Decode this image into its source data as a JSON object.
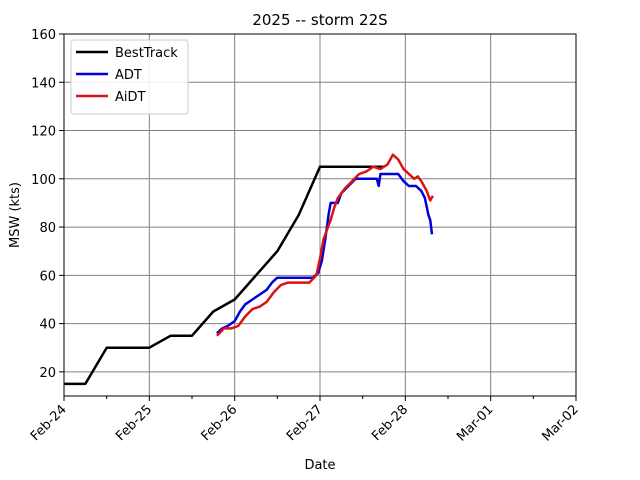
{
  "chart_data": {
    "type": "line",
    "title": "2025 -- storm 22S",
    "xlabel": "Date",
    "ylabel": "MSW (kts)",
    "xlim": [
      "2025-02-24T00:00",
      "2025-03-02T00:00"
    ],
    "ylim": [
      10,
      160
    ],
    "x_tick_labels": [
      "Feb-24",
      "Feb-25",
      "Feb-26",
      "Feb-27",
      "Feb-28",
      "Mar-01",
      "Mar-02"
    ],
    "y_ticks": [
      20,
      40,
      60,
      80,
      100,
      120,
      140,
      160
    ],
    "grid": true,
    "legend_position": "top-left",
    "series": [
      {
        "name": "BestTrack",
        "color": "#000000",
        "points": [
          [
            "2025-02-24T00:00",
            15
          ],
          [
            "2025-02-24T06:00",
            15
          ],
          [
            "2025-02-24T12:00",
            30
          ],
          [
            "2025-02-24T18:00",
            30
          ],
          [
            "2025-02-25T00:00",
            30
          ],
          [
            "2025-02-25T06:00",
            35
          ],
          [
            "2025-02-25T12:00",
            35
          ],
          [
            "2025-02-25T18:00",
            45
          ],
          [
            "2025-02-26T00:00",
            50
          ],
          [
            "2025-02-26T06:00",
            60
          ],
          [
            "2025-02-26T12:00",
            70
          ],
          [
            "2025-02-26T18:00",
            85
          ],
          [
            "2025-02-27T00:00",
            105
          ],
          [
            "2025-02-27T06:00",
            105
          ],
          [
            "2025-02-27T12:00",
            105
          ],
          [
            "2025-02-27T18:00",
            105
          ]
        ]
      },
      {
        "name": "ADT",
        "color": "#0000dd",
        "points": [
          [
            "2025-02-25T19:00",
            36
          ],
          [
            "2025-02-25T20:30",
            38
          ],
          [
            "2025-02-25T22:00",
            39
          ],
          [
            "2025-02-26T00:00",
            41
          ],
          [
            "2025-02-26T01:30",
            45
          ],
          [
            "2025-02-26T03:00",
            48
          ],
          [
            "2025-02-26T05:00",
            50
          ],
          [
            "2025-02-26T07:00",
            52
          ],
          [
            "2025-02-26T09:00",
            54
          ],
          [
            "2025-02-26T10:30",
            57
          ],
          [
            "2025-02-26T12:00",
            59
          ],
          [
            "2025-02-26T18:00",
            59
          ],
          [
            "2025-02-26T22:00",
            59
          ],
          [
            "2025-02-26T23:30",
            61
          ],
          [
            "2025-02-27T00:30",
            66
          ],
          [
            "2025-02-27T01:30",
            75
          ],
          [
            "2025-02-27T02:30",
            86
          ],
          [
            "2025-02-27T03:00",
            90
          ],
          [
            "2025-02-27T05:00",
            90
          ],
          [
            "2025-02-27T06:00",
            94
          ],
          [
            "2025-02-27T08:00",
            97
          ],
          [
            "2025-02-27T10:00",
            100
          ],
          [
            "2025-02-27T14:00",
            100
          ],
          [
            "2025-02-27T16:00",
            100
          ],
          [
            "2025-02-27T16:30",
            97
          ],
          [
            "2025-02-27T17:00",
            102
          ],
          [
            "2025-02-27T22:00",
            102
          ],
          [
            "2025-02-27T23:30",
            99
          ],
          [
            "2025-02-28T01:00",
            97
          ],
          [
            "2025-02-28T03:00",
            97
          ],
          [
            "2025-02-28T04:30",
            95
          ],
          [
            "2025-02-28T05:30",
            92
          ],
          [
            "2025-02-28T06:30",
            85
          ],
          [
            "2025-02-28T07:00",
            83
          ],
          [
            "2025-02-28T07:30",
            77
          ]
        ]
      },
      {
        "name": "AiDT",
        "color": "#dd1111",
        "points": [
          [
            "2025-02-25T19:00",
            35
          ],
          [
            "2025-02-25T21:00",
            38
          ],
          [
            "2025-02-25T23:00",
            38
          ],
          [
            "2025-02-26T01:00",
            39
          ],
          [
            "2025-02-26T03:00",
            43
          ],
          [
            "2025-02-26T05:00",
            46
          ],
          [
            "2025-02-26T07:00",
            47
          ],
          [
            "2025-02-26T09:00",
            49
          ],
          [
            "2025-02-26T11:00",
            53
          ],
          [
            "2025-02-26T13:00",
            56
          ],
          [
            "2025-02-26T15:00",
            57
          ],
          [
            "2025-02-26T17:00",
            57
          ],
          [
            "2025-02-26T19:00",
            57
          ],
          [
            "2025-02-26T21:00",
            57
          ],
          [
            "2025-02-26T23:00",
            60
          ],
          [
            "2025-02-27T00:00",
            67
          ],
          [
            "2025-02-27T01:00",
            75
          ],
          [
            "2025-02-27T02:00",
            79
          ],
          [
            "2025-02-27T03:00",
            83
          ],
          [
            "2025-02-27T04:00",
            88
          ],
          [
            "2025-02-27T05:00",
            92
          ],
          [
            "2025-02-27T07:00",
            96
          ],
          [
            "2025-02-27T09:00",
            99
          ],
          [
            "2025-02-27T11:00",
            102
          ],
          [
            "2025-02-27T13:00",
            103
          ],
          [
            "2025-02-27T15:00",
            105
          ],
          [
            "2025-02-27T17:00",
            104
          ],
          [
            "2025-02-27T19:00",
            106
          ],
          [
            "2025-02-27T20:30",
            110
          ],
          [
            "2025-02-27T22:00",
            108
          ],
          [
            "2025-02-27T23:30",
            104
          ],
          [
            "2025-02-28T01:00",
            102
          ],
          [
            "2025-02-28T02:30",
            100
          ],
          [
            "2025-02-28T03:30",
            101
          ],
          [
            "2025-02-28T04:30",
            99
          ],
          [
            "2025-02-28T06:00",
            95
          ],
          [
            "2025-02-28T07:00",
            91
          ],
          [
            "2025-02-28T07:45",
            93
          ]
        ]
      }
    ]
  }
}
